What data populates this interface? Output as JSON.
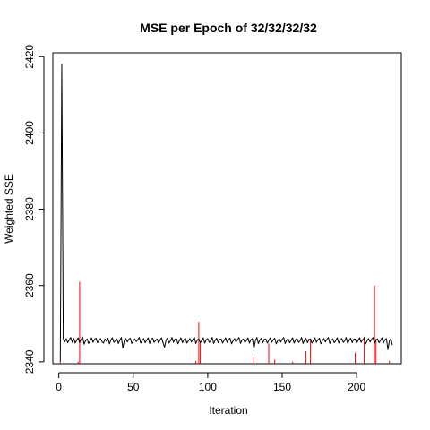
{
  "chart_data": {
    "type": "line",
    "title": "MSE per Epoch of 32/32/32/32",
    "xlabel": "Iteration",
    "ylabel": "Weighted SSE",
    "xlim": [
      -4,
      230
    ],
    "ylim": [
      2339.5,
      2421
    ],
    "x_ticks": [
      0,
      50,
      100,
      150,
      200
    ],
    "y_ticks": [
      2340,
      2360,
      2380,
      2400,
      2420
    ],
    "grid": false,
    "line_color": "#000000",
    "spike_color": "#ff0000",
    "series": [
      {
        "values": [
          2340.0,
          2418.0,
          2346.0,
          2345.2,
          2346.1,
          2345.0,
          2345.8,
          2346.4,
          2345.1,
          2346.2,
          2344.9,
          2345.7,
          2346.3,
          2345.0,
          2345.9,
          2346.5,
          2344.6,
          2345.6,
          2346.0,
          2344.8,
          2345.5,
          2346.3,
          2345.1,
          2345.9,
          2346.2,
          2345.0,
          2345.6,
          2346.1,
          2345.3,
          2344.9,
          2346.0,
          2345.4,
          2346.2,
          2344.7,
          2345.8,
          2346.3,
          2345.1,
          2345.5,
          2346.0,
          2344.8,
          2345.7,
          2346.4,
          2343.6,
          2345.6,
          2346.1,
          2345.2,
          2345.9,
          2346.2,
          2344.8,
          2345.5,
          2346.0,
          2345.3,
          2345.8,
          2346.4,
          2344.9,
          2345.6,
          2346.1,
          2345.0,
          2345.7,
          2346.3,
          2344.8,
          2345.9,
          2346.2,
          2345.1,
          2345.6,
          2346.0,
          2344.9,
          2345.8,
          2346.3,
          2345.0,
          2343.8,
          2345.7,
          2346.2,
          2344.9,
          2345.5,
          2346.4,
          2345.1,
          2345.9,
          2346.1,
          2344.7,
          2345.6,
          2346.3,
          2345.0,
          2345.8,
          2346.2,
          2344.9,
          2345.5,
          2346.1,
          2345.2,
          2345.9,
          2346.4,
          2344.8,
          2345.7,
          2346.0,
          2345.0,
          2345.6,
          2346.3,
          2344.9,
          2345.8,
          2346.1,
          2345.1,
          2345.5,
          2346.4,
          2344.8,
          2345.7,
          2346.2,
          2345.0,
          2345.9,
          2346.0,
          2344.9,
          2345.6,
          2346.3,
          2345.1,
          2345.8,
          2346.2,
          2344.7,
          2345.5,
          2346.1,
          2345.2,
          2345.9,
          2346.4,
          2344.8,
          2345.7,
          2346.0,
          2345.0,
          2345.6,
          2346.3,
          2344.9,
          2345.8,
          2346.1,
          2343.5,
          2345.5,
          2346.4,
          2344.8,
          2345.7,
          2346.2,
          2345.0,
          2345.9,
          2346.0,
          2344.9,
          2345.6,
          2346.3,
          2345.1,
          2345.8,
          2346.2,
          2344.7,
          2345.5,
          2346.1,
          2345.2,
          2345.9,
          2346.4,
          2344.8,
          2345.7,
          2346.0,
          2345.0,
          2345.6,
          2346.3,
          2344.9,
          2345.8,
          2346.1,
          2345.1,
          2345.5,
          2346.4,
          2344.8,
          2345.7,
          2346.2,
          2345.0,
          2345.9,
          2346.0,
          2344.9,
          2345.6,
          2346.3,
          2345.1,
          2345.8,
          2346.2,
          2344.7,
          2345.5,
          2346.1,
          2345.2,
          2345.9,
          2346.4,
          2344.8,
          2345.7,
          2346.0,
          2345.0,
          2345.6,
          2346.3,
          2344.9,
          2345.8,
          2346.1,
          2345.1,
          2345.5,
          2346.4,
          2344.8,
          2345.7,
          2346.2,
          2345.0,
          2345.9,
          2346.0,
          2344.9,
          2345.6,
          2346.3,
          2345.1,
          2345.8,
          2346.2,
          2344.7,
          2345.5,
          2346.1,
          2345.2,
          2345.9,
          2346.4,
          2344.8,
          2345.7,
          2346.0,
          2345.0,
          2345.6,
          2346.3,
          2344.9,
          2345.8,
          2346.1,
          2343.2,
          2345.5,
          2346.0,
          2344.4
        ]
      }
    ],
    "spikes": [
      {
        "x": 1,
        "y": 2340.0
      },
      {
        "x": 13,
        "y": 2340.0
      },
      {
        "x": 14,
        "y": 2361.0
      },
      {
        "x": 92,
        "y": 2340.2
      },
      {
        "x": 94,
        "y": 2350.5
      },
      {
        "x": 95,
        "y": 2345.0
      },
      {
        "x": 131,
        "y": 2341.2
      },
      {
        "x": 141,
        "y": 2344.8
      },
      {
        "x": 145,
        "y": 2340.6
      },
      {
        "x": 157,
        "y": 2340.0
      },
      {
        "x": 166,
        "y": 2342.8
      },
      {
        "x": 169,
        "y": 2345.8
      },
      {
        "x": 199,
        "y": 2342.4
      },
      {
        "x": 205,
        "y": 2346.6
      },
      {
        "x": 212,
        "y": 2360.0
      },
      {
        "x": 213,
        "y": 2346.0
      },
      {
        "x": 222,
        "y": 2340.2
      }
    ]
  }
}
